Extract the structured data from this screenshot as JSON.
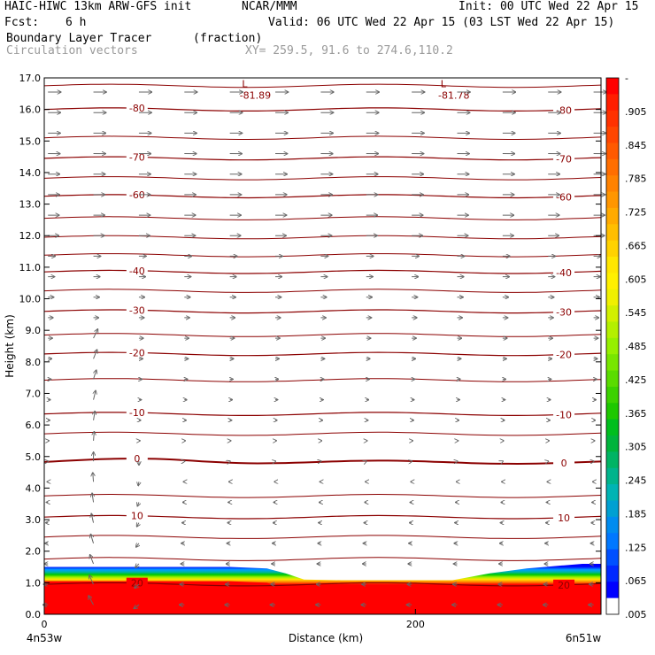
{
  "header": {
    "title_left": "HAIC-HIWC 13km ARW-GFS init",
    "title_center": "NCAR/MMM",
    "init_label": "Init: 00 UTC Wed 22 Apr 15",
    "fcst_label": "Fcst:",
    "fcst_value": "6 h",
    "valid_label": "Valid: 06 UTC Wed 22 Apr 15 (03 LST Wed 22 Apr 15)",
    "field_name": "Boundary Layer Tracer",
    "field_units": "(fraction)",
    "vector_field": "Circulation vectors",
    "xy_range": "XY= 259.5, 91.6 to 274.6,110.2"
  },
  "chart_data": {
    "type": "heatmap",
    "title": "Boundary Layer Tracer",
    "units": "(fraction)",
    "xlabel": "Distance (km)",
    "ylabel": "Height (km)",
    "xlim": [
      0,
      300
    ],
    "ylim": [
      0,
      17
    ],
    "x_ticks": [
      {
        "value": 0,
        "label": "0"
      },
      {
        "value": 200,
        "label": "200"
      }
    ],
    "x_end_labels": {
      "left": "4n53w",
      "right": "6n51w"
    },
    "y_ticks": [
      "0.0",
      "1.0",
      "2.0",
      "3.0",
      "4.0",
      "5.0",
      "6.0",
      "7.0",
      "8.0",
      "9.0",
      "10.0",
      "11.0",
      "12.0",
      "13.0",
      "14.0",
      "15.0",
      "16.0",
      "17.0"
    ],
    "colorbar": {
      "labels": [
        "-",
        ".905",
        ".845",
        ".785",
        ".725",
        ".665",
        ".605",
        ".545",
        ".485",
        ".425",
        ".365",
        ".305",
        ".245",
        ".185",
        ".125",
        ".065",
        ".005"
      ],
      "colors": [
        "#ff0000",
        "#ff1e00",
        "#ff3200",
        "#ff4600",
        "#ff5a00",
        "#ff6e00",
        "#ff8200",
        "#ff9600",
        "#ffaa00",
        "#ffbe00",
        "#ffd200",
        "#ffe600",
        "#fff000",
        "#f0f000",
        "#d2f000",
        "#b4f000",
        "#96f000",
        "#78e600",
        "#5adc00",
        "#3cd200",
        "#1ec800",
        "#00be1e",
        "#00b43c",
        "#00b464",
        "#00b48c",
        "#00b4b4",
        "#00a0d2",
        "#008cf0",
        "#0078ff",
        "#0050ff",
        "#0028ff",
        "#0000ff",
        "#ffffff"
      ]
    },
    "tracer_profile": {
      "x": [
        0,
        20,
        40,
        60,
        80,
        100,
        120,
        130,
        140,
        160,
        180,
        200,
        220,
        240,
        260,
        270,
        280,
        290,
        300
      ],
      "top_km": [
        1.5,
        1.5,
        1.5,
        1.5,
        1.5,
        1.5,
        1.45,
        1.3,
        1.1,
        1.08,
        1.08,
        1.08,
        1.08,
        1.3,
        1.45,
        1.5,
        1.55,
        1.6,
        1.6
      ],
      "saturated_top_km": [
        1.05,
        1.05,
        1.05,
        1.05,
        1.05,
        1.05,
        1.0,
        0.8,
        0.7,
        0.7,
        0.7,
        0.7,
        0.7,
        0.8,
        0.95,
        0.95,
        0.95,
        0.95,
        0.95
      ]
    },
    "temperature_contours": {
      "units": "deg C",
      "lines": [
        {
          "label": "20",
          "height_km": 0.95,
          "label_x": [
            50,
            280
          ]
        },
        {
          "label": "10",
          "height_km": 3.08,
          "label_x": [
            50,
            280
          ]
        },
        {
          "label": "0",
          "height_km": 4.82,
          "label_x": [
            50,
            280
          ]
        },
        {
          "label": "-10",
          "height_km": 6.35,
          "label_x": [
            50,
            280
          ]
        },
        {
          "label": "-20",
          "height_km": 8.25,
          "label_x": [
            50,
            280
          ]
        },
        {
          "label": "-30",
          "height_km": 9.6,
          "label_x": [
            50,
            280
          ]
        },
        {
          "label": "-40",
          "height_km": 10.85,
          "label_x": [
            50,
            280
          ]
        },
        {
          "label": "-60",
          "height_km": 13.25,
          "label_x": [
            50,
            280
          ]
        },
        {
          "label": "-70",
          "height_km": 14.45,
          "label_x": [
            50,
            280
          ]
        },
        {
          "label": "-80",
          "height_km": 16.0,
          "label_x": [
            50,
            280
          ]
        }
      ],
      "unlabeled_heights_km": [
        1.75,
        2.45,
        3.75,
        5.72,
        7.42,
        8.85,
        10.25,
        11.38,
        11.95,
        12.55,
        13.82,
        15.1,
        16.75
      ]
    },
    "extrema": [
      {
        "marker": "L",
        "value": "-81.89",
        "x": 108,
        "height_km": 16.6
      },
      {
        "marker": "L",
        "value": "-81.78",
        "x": 215,
        "height_km": 16.6
      }
    ],
    "vectors": {
      "description": "Circulation vectors",
      "upper_direction": "east",
      "lower_direction": "west",
      "reversal_height_km": 4.8
    }
  }
}
